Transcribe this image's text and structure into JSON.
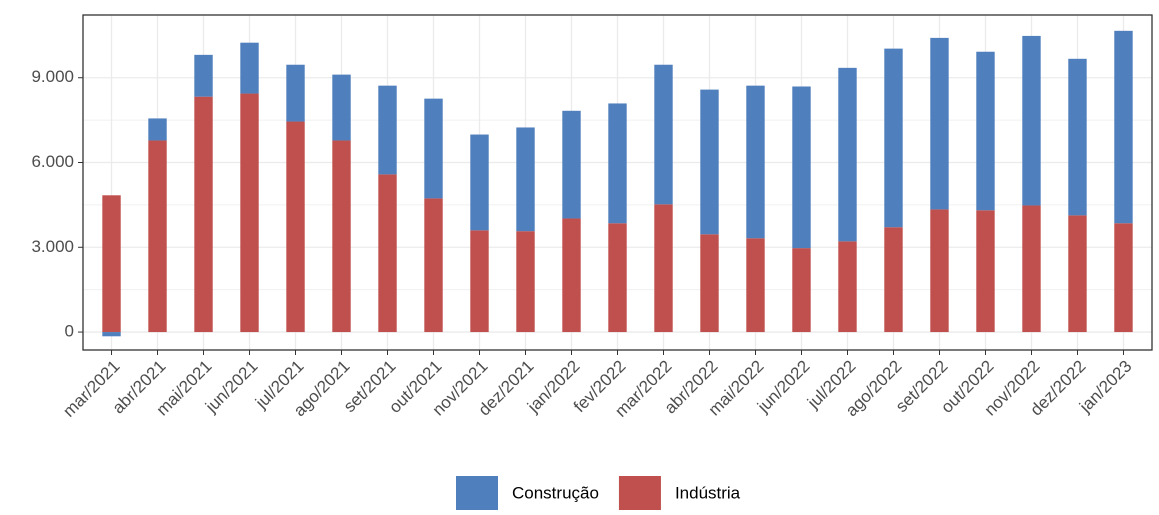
{
  "chart_data": {
    "type": "stacked_bar",
    "categories": [
      "mar/2021",
      "abr/2021",
      "mai/2021",
      "jun/2021",
      "jul/2021",
      "ago/2021",
      "set/2021",
      "out/2021",
      "nov/2021",
      "dez/2021",
      "jan/2022",
      "fev/2022",
      "mar/2022",
      "abr/2022",
      "mai/2022",
      "jun/2022",
      "jul/2022",
      "ago/2022",
      "set/2022",
      "out/2022",
      "nov/2022",
      "dez/2022",
      "jan/2023"
    ],
    "series": [
      {
        "name": "Construção",
        "color": "#4f7fbd",
        "values": [
          -150,
          780,
          1480,
          1800,
          2010,
          2330,
          3140,
          3530,
          3390,
          3670,
          3810,
          4240,
          4940,
          5120,
          5400,
          5720,
          6140,
          6320,
          6070,
          5610,
          6000,
          5540,
          6810
        ]
      },
      {
        "name": "Indústria",
        "color": "#c0504d",
        "values": [
          4840,
          6780,
          8330,
          8440,
          7450,
          6780,
          5580,
          4730,
          3600,
          3570,
          4020,
          3850,
          4520,
          3460,
          3320,
          2970,
          3210,
          3710,
          4340,
          4310,
          4480,
          4130,
          3850
        ]
      }
    ],
    "ylim": [
      -635,
      11220
    ],
    "yticks": [
      0,
      {
        "value": 3000,
        "label": "3.000"
      },
      {
        "value": 6000,
        "label": "6.000"
      },
      {
        "value": 9000,
        "label": "9.000"
      }
    ],
    "grid": true,
    "legend": "bottom"
  }
}
